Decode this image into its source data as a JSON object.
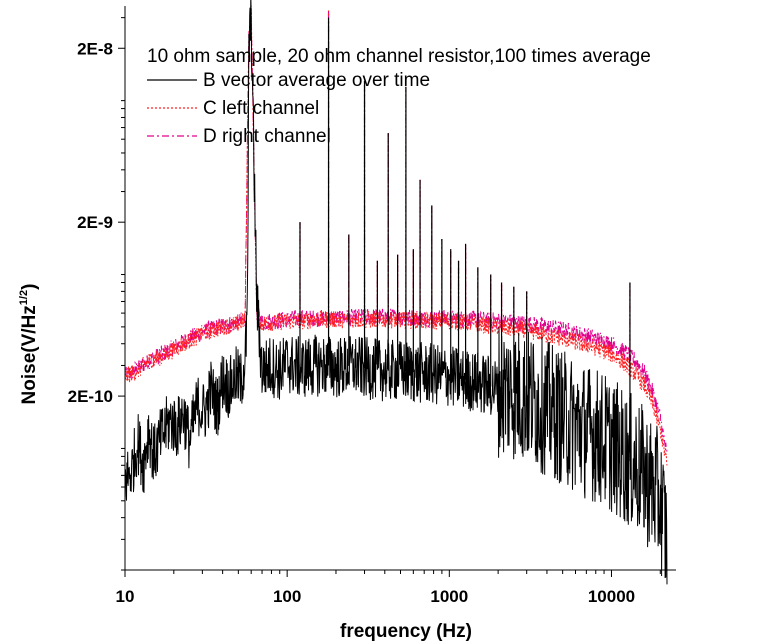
{
  "chart_data": {
    "type": "line",
    "title": "10 ohm sample, 20 ohm channel resistor,100 times average",
    "xlabel": "frequency (Hz)",
    "ylabel": "Noise(V/Hz^(1/2))",
    "ylabel_parts": {
      "main": "Noise(V/Hz",
      "sup": "1/2",
      "close": ")"
    },
    "x_scale": "log",
    "y_scale": "log",
    "xlim": [
      10,
      25000
    ],
    "ylim": [
      2e-11,
      3.5e-08
    ],
    "x_ticks": [
      {
        "value": 10,
        "label": "10"
      },
      {
        "value": 100,
        "label": "100"
      },
      {
        "value": 1000,
        "label": "1000"
      },
      {
        "value": 10000,
        "label": "10000"
      }
    ],
    "y_ticks": [
      {
        "value": 2e-10,
        "label": "2E-10"
      },
      {
        "value": 2e-09,
        "label": "2E-9"
      },
      {
        "value": 2e-08,
        "label": "2E-8"
      }
    ],
    "legend_position": "top-left",
    "grid": false,
    "colors": {
      "B": "#000000",
      "C": "#ff2020",
      "D": "#e0008c"
    },
    "series": [
      {
        "name": "B vector average over time",
        "style": "solid",
        "color": "#000000",
        "x": [
          10,
          11,
          12,
          13,
          14,
          15,
          17,
          19,
          21,
          23,
          25,
          28,
          31,
          34,
          37,
          40,
          44,
          48,
          52,
          55,
          57,
          58,
          60,
          62,
          65,
          70,
          80,
          90,
          100,
          120,
          150,
          180,
          200,
          250,
          300,
          400,
          500,
          700,
          1000,
          1500,
          2000,
          3000,
          4000,
          5000,
          6000,
          8000,
          10000,
          12000,
          14000,
          16000,
          18000,
          20000,
          22000
        ],
        "y": [
          6.5e-11,
          7.5e-11,
          1.1e-10,
          8e-11,
          1.3e-10,
          9e-11,
          1.2e-10,
          1.45e-10,
          1.3e-10,
          1.6e-10,
          1.1e-10,
          1.8e-10,
          1.6e-10,
          2.2e-10,
          1.7e-10,
          2.5e-10,
          2.2e-10,
          2.6e-10,
          2.4e-10,
          3.2e-10,
          6e-10,
          2e-08,
          3e-08,
          6e-09,
          7e-10,
          2.8e-10,
          3e-10,
          2.8e-10,
          3.1e-10,
          2.9e-10,
          3e-10,
          3e-10,
          2.9e-10,
          3e-10,
          2.9e-10,
          2.8e-10,
          2.8e-10,
          2.7e-10,
          2.6e-10,
          2.4e-10,
          2.2e-10,
          2e-10,
          1.7e-10,
          1.5e-10,
          1.35e-10,
          1.2e-10,
          1.05e-10,
          9e-11,
          8e-11,
          7e-11,
          6e-11,
          5e-11,
          3e-11
        ]
      },
      {
        "name": "C left channel",
        "style": "dotted",
        "color": "#ff2020",
        "x": [
          10,
          12,
          14,
          16,
          18,
          20,
          22,
          25,
          28,
          30,
          35,
          40,
          45,
          50,
          55,
          58,
          60,
          62,
          65,
          70,
          80,
          100,
          120,
          150,
          200,
          300,
          500,
          700,
          1000,
          1500,
          2000,
          3000,
          4000,
          5000,
          6000,
          8000,
          10000,
          12000,
          14000,
          16000,
          18000,
          20000,
          22000
        ],
        "y": [
          2.6e-10,
          2.8e-10,
          3.2e-10,
          3.3e-10,
          3.5e-10,
          3.7e-10,
          3.9e-10,
          4.2e-10,
          4.4e-10,
          4.6e-10,
          4.8e-10,
          5e-10,
          5.1e-10,
          5.2e-10,
          5.5e-10,
          2.2e-08,
          3.3e-08,
          6e-09,
          6e-10,
          5.2e-10,
          5.3e-10,
          5.4e-10,
          5.4e-10,
          5.5e-10,
          5.5e-10,
          5.5e-10,
          5.5e-10,
          5.4e-10,
          5.4e-10,
          5.2e-10,
          5e-10,
          4.8e-10,
          4.5e-10,
          4.3e-10,
          4.1e-10,
          3.8e-10,
          3.5e-10,
          3.1e-10,
          2.7e-10,
          2.3e-10,
          1.8e-10,
          1.3e-10,
          8e-11
        ]
      },
      {
        "name": "D right channel",
        "style": "dashdot",
        "color": "#e0008c",
        "x": [
          10,
          12,
          14,
          16,
          18,
          20,
          22,
          25,
          28,
          30,
          35,
          40,
          45,
          50,
          55,
          58,
          60,
          62,
          65,
          70,
          80,
          100,
          120,
          150,
          200,
          300,
          500,
          700,
          1000,
          1500,
          2000,
          3000,
          4000,
          5000,
          6000,
          8000,
          10000,
          12000,
          14000,
          16000,
          18000,
          20000,
          22000
        ],
        "y": [
          2.6e-10,
          2.9e-10,
          3.2e-10,
          3.4e-10,
          3.6e-10,
          3.8e-10,
          4e-10,
          4.3e-10,
          4.5e-10,
          4.7e-10,
          4.9e-10,
          5.1e-10,
          5.2e-10,
          5.3e-10,
          5.6e-10,
          2.2e-08,
          3.3e-08,
          6e-09,
          6.1e-10,
          5.3e-10,
          5.4e-10,
          5.5e-10,
          5.6e-10,
          5.6e-10,
          5.6e-10,
          5.7e-10,
          5.7e-10,
          5.6e-10,
          5.6e-10,
          5.5e-10,
          5.4e-10,
          5.2e-10,
          5e-10,
          4.8e-10,
          4.6e-10,
          4.3e-10,
          4e-10,
          3.6e-10,
          3.2e-10,
          2.7e-10,
          2.1e-10,
          1.5e-10,
          9e-11
        ]
      }
    ],
    "harmonic_spikes": [
      {
        "x": 60,
        "y": 3.3e-08
      },
      {
        "x": 120,
        "y": 2e-09
      },
      {
        "x": 180,
        "y": 3.3e-08
      },
      {
        "x": 240,
        "y": 1.7e-09
      },
      {
        "x": 300,
        "y": 1.3e-08
      },
      {
        "x": 360,
        "y": 1.2e-09
      },
      {
        "x": 420,
        "y": 6.5e-09
      },
      {
        "x": 480,
        "y": 1.3e-09
      },
      {
        "x": 540,
        "y": 1.2e-08
      },
      {
        "x": 600,
        "y": 1.4e-09
      },
      {
        "x": 660,
        "y": 3.5e-09
      },
      {
        "x": 780,
        "y": 2.5e-09
      },
      {
        "x": 900,
        "y": 1.6e-09
      },
      {
        "x": 1020,
        "y": 1.4e-09
      },
      {
        "x": 1140,
        "y": 1.2e-09
      },
      {
        "x": 1260,
        "y": 1.5e-09
      },
      {
        "x": 1500,
        "y": 1.1e-09
      },
      {
        "x": 1800,
        "y": 1e-09
      },
      {
        "x": 2100,
        "y": 9e-10
      },
      {
        "x": 2500,
        "y": 8.5e-10
      },
      {
        "x": 3000,
        "y": 8e-10
      },
      {
        "x": 13000,
        "y": 9e-10
      }
    ]
  }
}
